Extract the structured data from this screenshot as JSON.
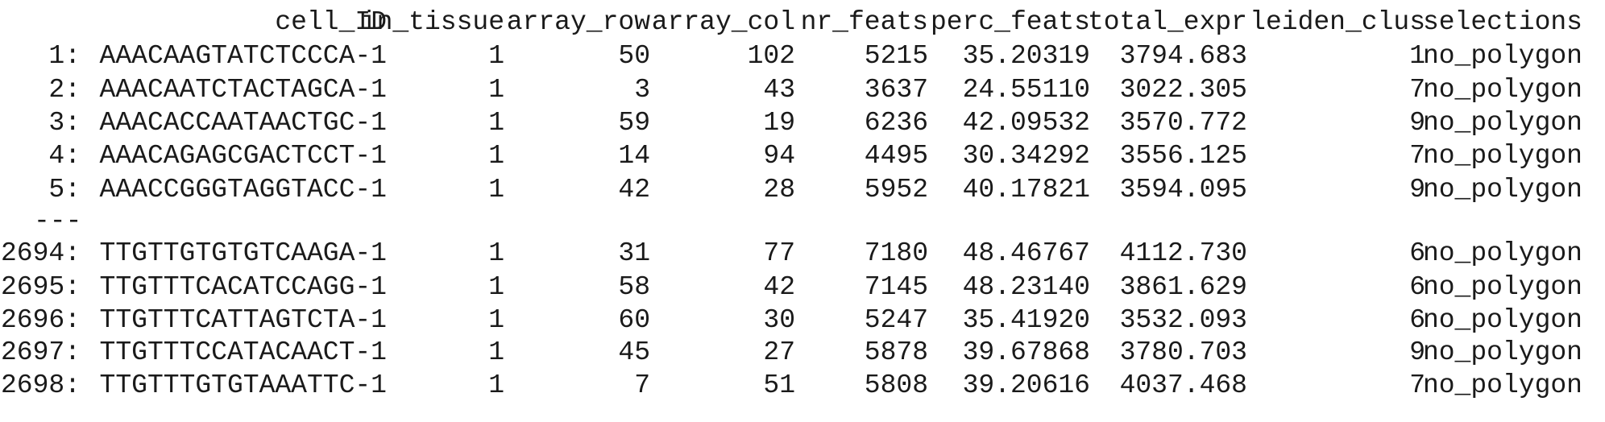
{
  "table": {
    "columns": [
      "",
      "cell_ID",
      "in_tissue",
      "array_row",
      "array_col",
      "nr_feats",
      "perc_feats",
      "total_expr",
      "leiden_clus",
      "selections"
    ],
    "rows_top": [
      [
        "1:",
        "AAACAAGTATCTCCCA-1",
        "1",
        "50",
        "102",
        "5215",
        "35.20319",
        "3794.683",
        "1",
        "no_polygon"
      ],
      [
        "2:",
        "AAACAATCTACTAGCA-1",
        "1",
        "3",
        "43",
        "3637",
        "24.55110",
        "3022.305",
        "7",
        "no_polygon"
      ],
      [
        "3:",
        "AAACACCAATAACTGC-1",
        "1",
        "59",
        "19",
        "6236",
        "42.09532",
        "3570.772",
        "9",
        "no_polygon"
      ],
      [
        "4:",
        "AAACAGAGCGACTCCT-1",
        "1",
        "14",
        "94",
        "4495",
        "30.34292",
        "3556.125",
        "7",
        "no_polygon"
      ],
      [
        "5:",
        "AAACCGGGTAGGTACC-1",
        "1",
        "42",
        "28",
        "5952",
        "40.17821",
        "3594.095",
        "9",
        "no_polygon"
      ]
    ],
    "separator": "---",
    "rows_bottom": [
      [
        "2694:",
        "TTGTTGTGTGTCAAGA-1",
        "1",
        "31",
        "77",
        "7180",
        "48.46767",
        "4112.730",
        "6",
        "no_polygon"
      ],
      [
        "2695:",
        "TTGTTTCACATCCAGG-1",
        "1",
        "58",
        "42",
        "7145",
        "48.23140",
        "3861.629",
        "6",
        "no_polygon"
      ],
      [
        "2696:",
        "TTGTTTCATTAGTCTA-1",
        "1",
        "60",
        "30",
        "5247",
        "35.41920",
        "3532.093",
        "6",
        "no_polygon"
      ],
      [
        "2697:",
        "TTGTTTCCATACAACT-1",
        "1",
        "45",
        "27",
        "5878",
        "39.67868",
        "3780.703",
        "9",
        "no_polygon"
      ],
      [
        "2698:",
        "TTGTTTGTGTAAATTC-1",
        "1",
        "7",
        "51",
        "5808",
        "39.20616",
        "4037.468",
        "7",
        "no_polygon"
      ]
    ]
  }
}
